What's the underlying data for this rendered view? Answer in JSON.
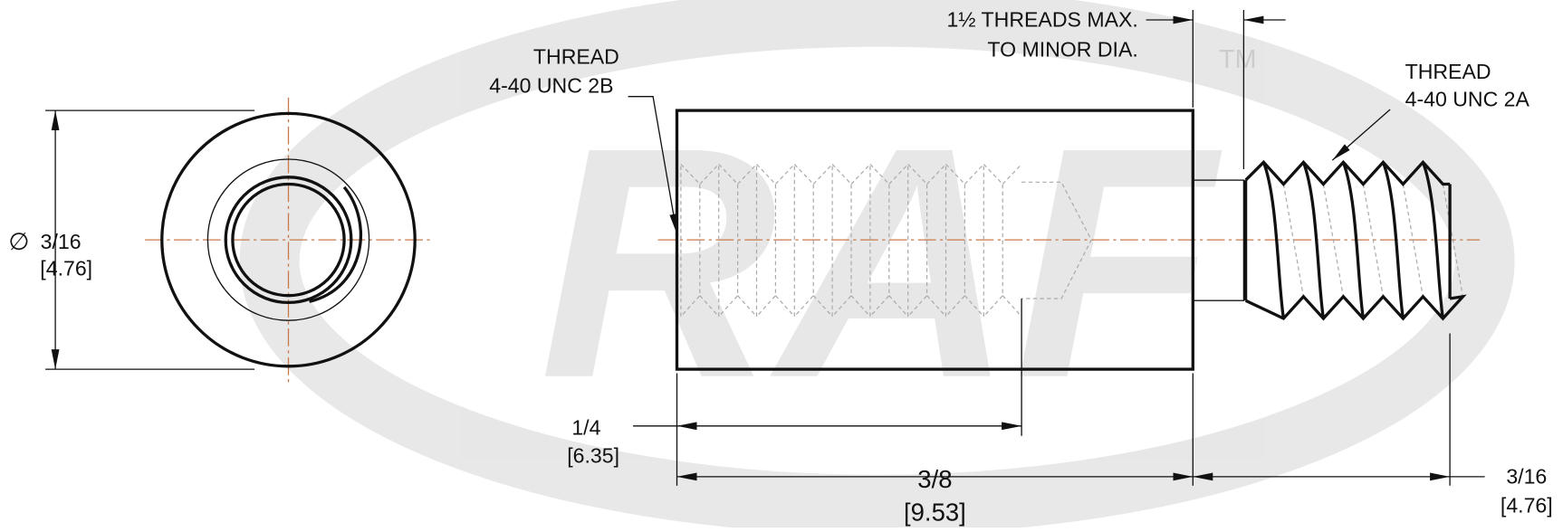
{
  "left_callout": {
    "line1": "THREAD",
    "line2": "4-40 UNC 2B"
  },
  "top_callout": {
    "line1": "1½ THREADS MAX.",
    "line2": "TO MINOR DIA."
  },
  "right_callout": {
    "line1": "THREAD",
    "line2": "4-40 UNC 2A"
  },
  "dimensions": {
    "diameter": {
      "symbol": "∅",
      "value": "3/16",
      "metric": "[4.76]"
    },
    "internal_thread_length": {
      "value": "1/4",
      "metric": "[6.35]"
    },
    "body_length": {
      "value": "3/8",
      "metric": "[9.53]"
    },
    "stud_length": {
      "value": "3/16",
      "metric": "[4.76]"
    }
  },
  "watermark": {
    "logo": "RAF",
    "tm": "TM"
  }
}
